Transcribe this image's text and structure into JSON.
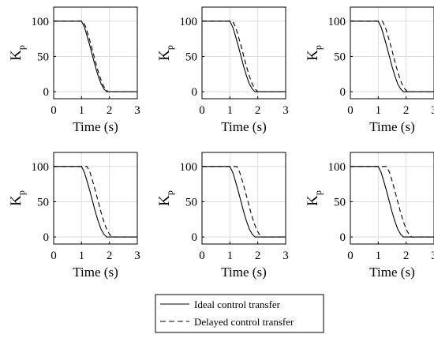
{
  "chart_data": [
    {
      "type": "line",
      "xlabel": "Time (s)",
      "ylabel": "K",
      "ylabel_sub": "p",
      "xlim": [
        0,
        3
      ],
      "ylim": [
        -10,
        120
      ],
      "xticks": [
        0,
        1,
        2,
        3
      ],
      "yticks": [
        0,
        50,
        100
      ],
      "grid": true,
      "delay": 0.05,
      "series": [
        {
          "name": "Ideal control transfer",
          "x": [
            0,
            1,
            1.1,
            1.2,
            1.3,
            1.4,
            1.5,
            1.6,
            1.7,
            1.8,
            1.9,
            2,
            3
          ],
          "y": [
            100,
            100,
            92,
            79,
            65,
            50,
            35,
            22,
            11,
            4,
            0,
            0,
            0
          ]
        },
        {
          "name": "Delayed control transfer",
          "x": [
            0,
            1.05,
            1.15,
            1.25,
            1.35,
            1.45,
            1.55,
            1.65,
            1.75,
            1.85,
            1.95,
            2.05,
            3
          ],
          "y": [
            100,
            100,
            92,
            79,
            65,
            50,
            35,
            22,
            11,
            4,
            0,
            0,
            0
          ]
        }
      ]
    },
    {
      "type": "line",
      "xlabel": "Time (s)",
      "ylabel": "K",
      "ylabel_sub": "p",
      "xlim": [
        0,
        3
      ],
      "ylim": [
        -10,
        120
      ],
      "xticks": [
        0,
        1,
        2,
        3
      ],
      "yticks": [
        0,
        50,
        100
      ],
      "grid": true,
      "delay": 0.1,
      "series": [
        {
          "name": "Ideal control transfer",
          "x": [
            0,
            1,
            1.1,
            1.2,
            1.3,
            1.4,
            1.5,
            1.6,
            1.7,
            1.8,
            1.9,
            2,
            3
          ],
          "y": [
            100,
            100,
            92,
            79,
            65,
            50,
            35,
            22,
            11,
            4,
            0,
            0,
            0
          ]
        },
        {
          "name": "Delayed control transfer",
          "x": [
            0,
            1.1,
            1.2,
            1.3,
            1.4,
            1.5,
            1.6,
            1.7,
            1.8,
            1.9,
            2,
            2.1,
            3
          ],
          "y": [
            100,
            100,
            92,
            79,
            65,
            50,
            35,
            22,
            11,
            4,
            0,
            0,
            0
          ]
        }
      ]
    },
    {
      "type": "line",
      "xlabel": "Time (s)",
      "ylabel": "K",
      "ylabel_sub": "p",
      "xlim": [
        0,
        3
      ],
      "ylim": [
        -10,
        120
      ],
      "xticks": [
        0,
        1,
        2,
        3
      ],
      "yticks": [
        0,
        50,
        100
      ],
      "grid": true,
      "delay": 0.15,
      "series": [
        {
          "name": "Ideal control transfer",
          "x": [
            0,
            1,
            1.1,
            1.2,
            1.3,
            1.4,
            1.5,
            1.6,
            1.7,
            1.8,
            1.9,
            2,
            3
          ],
          "y": [
            100,
            100,
            92,
            79,
            65,
            50,
            35,
            22,
            11,
            4,
            0,
            0,
            0
          ]
        },
        {
          "name": "Delayed control transfer",
          "x": [
            0,
            1.15,
            1.25,
            1.35,
            1.45,
            1.55,
            1.65,
            1.75,
            1.85,
            1.95,
            2.05,
            2.15,
            3
          ],
          "y": [
            100,
            100,
            92,
            79,
            65,
            50,
            35,
            22,
            11,
            4,
            0,
            0,
            0
          ]
        }
      ]
    },
    {
      "type": "line",
      "xlabel": "Time (s)",
      "ylabel": "K",
      "ylabel_sub": "p",
      "xlim": [
        0,
        3
      ],
      "ylim": [
        -10,
        120
      ],
      "xticks": [
        0,
        1,
        2,
        3
      ],
      "yticks": [
        0,
        50,
        100
      ],
      "grid": true,
      "delay": 0.2,
      "series": [
        {
          "name": "Ideal control transfer",
          "x": [
            0,
            1,
            1.1,
            1.2,
            1.3,
            1.4,
            1.5,
            1.6,
            1.7,
            1.8,
            1.9,
            2,
            3
          ],
          "y": [
            100,
            100,
            92,
            79,
            65,
            50,
            35,
            22,
            11,
            4,
            0,
            0,
            0
          ]
        },
        {
          "name": "Delayed control transfer",
          "x": [
            0,
            1.2,
            1.3,
            1.4,
            1.5,
            1.6,
            1.7,
            1.8,
            1.9,
            2,
            2.1,
            2.2,
            3
          ],
          "y": [
            100,
            100,
            92,
            79,
            65,
            50,
            35,
            22,
            11,
            4,
            0,
            0,
            0
          ]
        }
      ]
    },
    {
      "type": "line",
      "xlabel": "Time (s)",
      "ylabel": "K",
      "ylabel_sub": "p",
      "xlim": [
        0,
        3
      ],
      "ylim": [
        -10,
        120
      ],
      "xticks": [
        0,
        1,
        2,
        3
      ],
      "yticks": [
        0,
        50,
        100
      ],
      "grid": true,
      "delay": 0.25,
      "series": [
        {
          "name": "Ideal control transfer",
          "x": [
            0,
            1,
            1.1,
            1.2,
            1.3,
            1.4,
            1.5,
            1.6,
            1.7,
            1.8,
            1.9,
            2,
            3
          ],
          "y": [
            100,
            100,
            92,
            79,
            65,
            50,
            35,
            22,
            11,
            4,
            0,
            0,
            0
          ]
        },
        {
          "name": "Delayed control transfer",
          "x": [
            0,
            1.25,
            1.35,
            1.45,
            1.55,
            1.65,
            1.75,
            1.85,
            1.95,
            2.05,
            2.15,
            2.25,
            3
          ],
          "y": [
            100,
            100,
            92,
            79,
            65,
            50,
            35,
            22,
            11,
            4,
            0,
            0,
            0
          ]
        }
      ]
    },
    {
      "type": "line",
      "xlabel": "Time (s)",
      "ylabel": "K",
      "ylabel_sub": "p",
      "xlim": [
        0,
        3
      ],
      "ylim": [
        -10,
        120
      ],
      "xticks": [
        0,
        1,
        2,
        3
      ],
      "yticks": [
        0,
        50,
        100
      ],
      "grid": true,
      "delay": 0.3,
      "series": [
        {
          "name": "Ideal control transfer",
          "x": [
            0,
            1,
            1.1,
            1.2,
            1.3,
            1.4,
            1.5,
            1.6,
            1.7,
            1.8,
            1.9,
            2,
            3
          ],
          "y": [
            100,
            100,
            92,
            79,
            65,
            50,
            35,
            22,
            11,
            4,
            0,
            0,
            0
          ]
        },
        {
          "name": "Delayed control transfer",
          "x": [
            0,
            1.3,
            1.4,
            1.5,
            1.6,
            1.7,
            1.8,
            1.9,
            2,
            2.1,
            2.2,
            2.3,
            3
          ],
          "y": [
            100,
            100,
            92,
            79,
            65,
            50,
            35,
            22,
            11,
            4,
            0,
            0,
            0
          ]
        }
      ]
    }
  ],
  "legend": {
    "placement": "bottom-center",
    "items": [
      {
        "label": "Ideal control transfer",
        "style": "solid"
      },
      {
        "label": "Delayed control transfer",
        "style": "dashed"
      }
    ]
  },
  "colors": {
    "line": "#000000",
    "grid": "#dddddd",
    "axis": "#000000"
  }
}
